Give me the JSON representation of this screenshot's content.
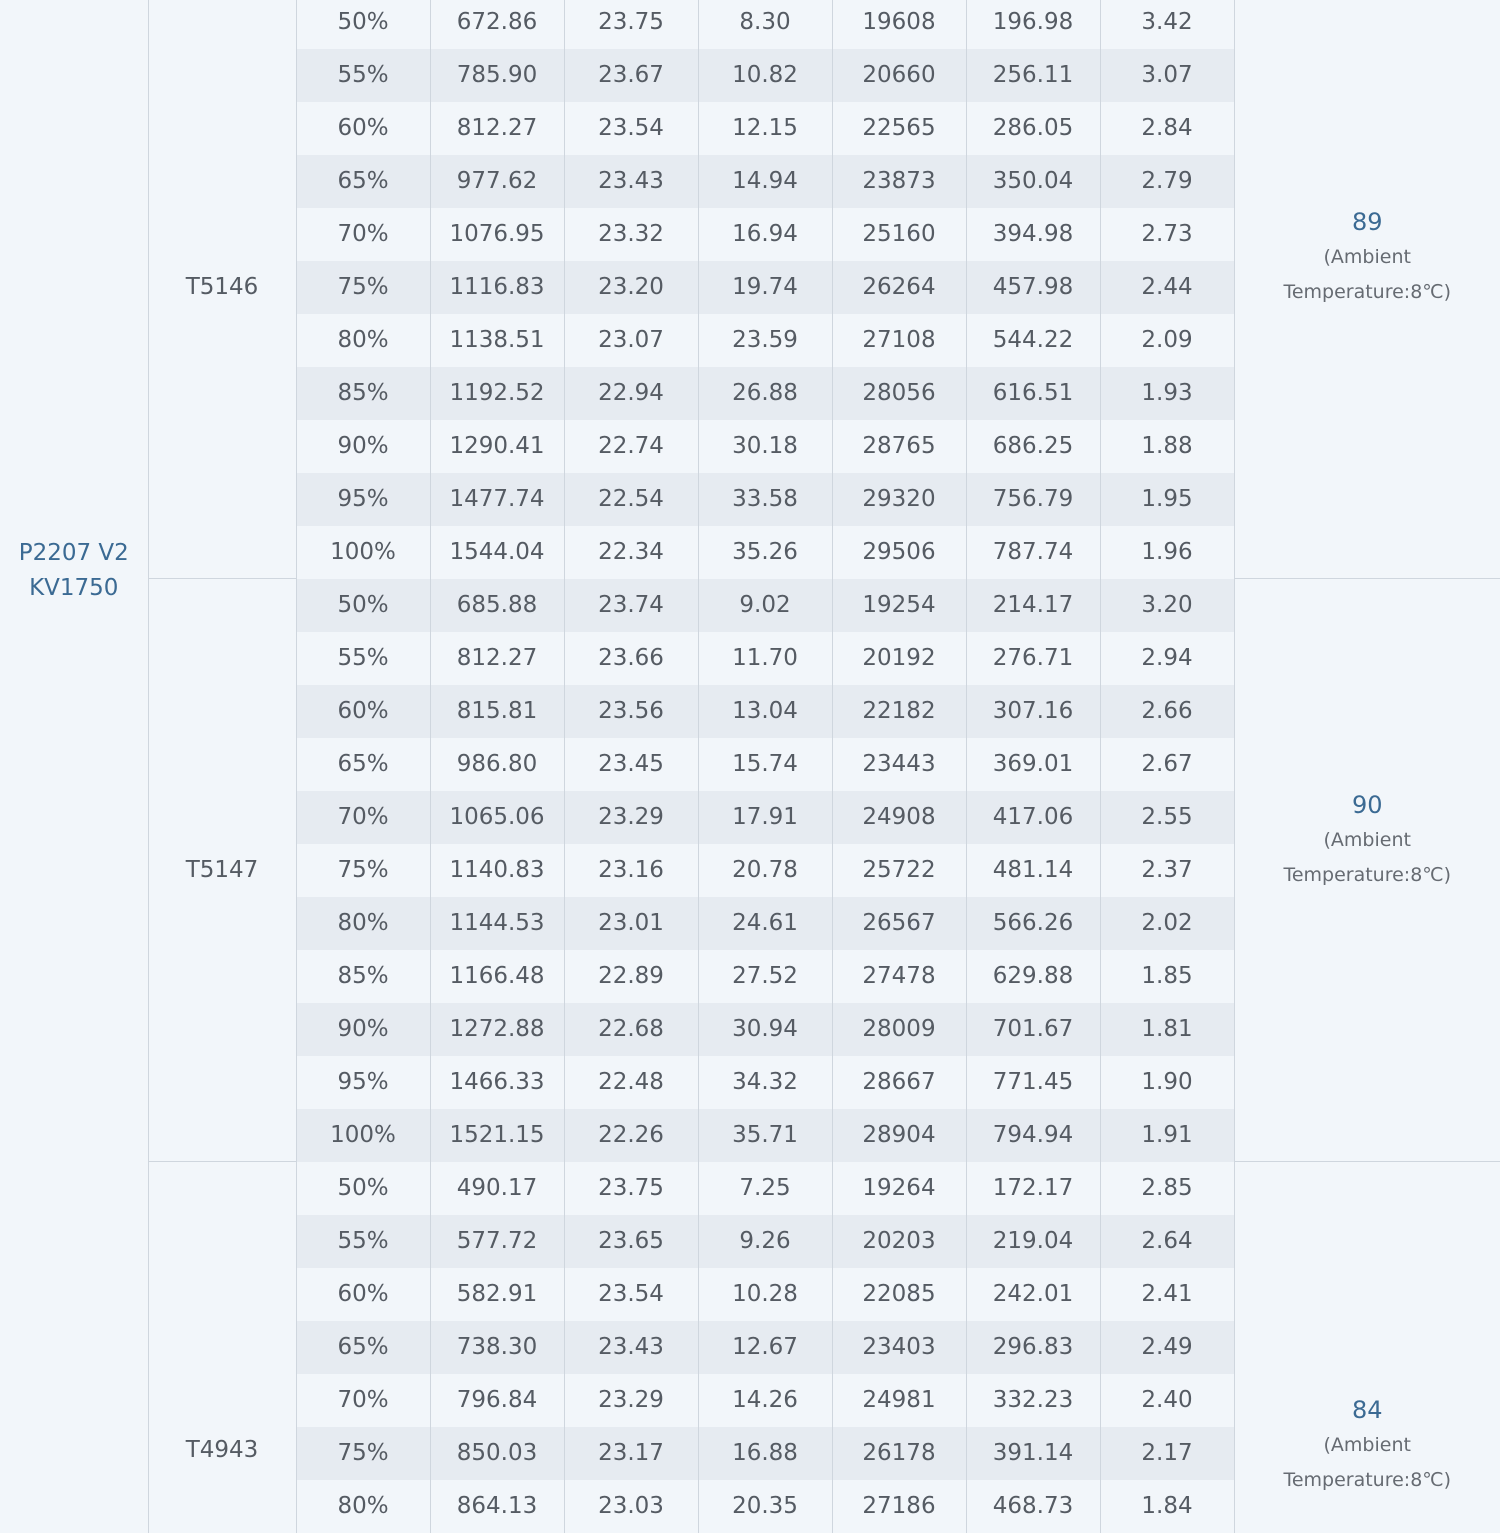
{
  "motor": {
    "line1": "P2207 V2",
    "line2": "KV1750"
  },
  "groups": [
    {
      "propeller": "T5146",
      "temp_value": "89",
      "temp_note_1": "(Ambient",
      "temp_note_2": "Temperature:8℃)",
      "rows": [
        [
          "50%",
          "672.86",
          "23.75",
          "8.30",
          "19608",
          "196.98",
          "3.42"
        ],
        [
          "55%",
          "785.90",
          "23.67",
          "10.82",
          "20660",
          "256.11",
          "3.07"
        ],
        [
          "60%",
          "812.27",
          "23.54",
          "12.15",
          "22565",
          "286.05",
          "2.84"
        ],
        [
          "65%",
          "977.62",
          "23.43",
          "14.94",
          "23873",
          "350.04",
          "2.79"
        ],
        [
          "70%",
          "1076.95",
          "23.32",
          "16.94",
          "25160",
          "394.98",
          "2.73"
        ],
        [
          "75%",
          "1116.83",
          "23.20",
          "19.74",
          "26264",
          "457.98",
          "2.44"
        ],
        [
          "80%",
          "1138.51",
          "23.07",
          "23.59",
          "27108",
          "544.22",
          "2.09"
        ],
        [
          "85%",
          "1192.52",
          "22.94",
          "26.88",
          "28056",
          "616.51",
          "1.93"
        ],
        [
          "90%",
          "1290.41",
          "22.74",
          "30.18",
          "28765",
          "686.25",
          "1.88"
        ],
        [
          "95%",
          "1477.74",
          "22.54",
          "33.58",
          "29320",
          "756.79",
          "1.95"
        ],
        [
          "100%",
          "1544.04",
          "22.34",
          "35.26",
          "29506",
          "787.74",
          "1.96"
        ]
      ]
    },
    {
      "propeller": "T5147",
      "temp_value": "90",
      "temp_note_1": "(Ambient",
      "temp_note_2": "Temperature:8℃)",
      "rows": [
        [
          "50%",
          "685.88",
          "23.74",
          "9.02",
          "19254",
          "214.17",
          "3.20"
        ],
        [
          "55%",
          "812.27",
          "23.66",
          "11.70",
          "20192",
          "276.71",
          "2.94"
        ],
        [
          "60%",
          "815.81",
          "23.56",
          "13.04",
          "22182",
          "307.16",
          "2.66"
        ],
        [
          "65%",
          "986.80",
          "23.45",
          "15.74",
          "23443",
          "369.01",
          "2.67"
        ],
        [
          "70%",
          "1065.06",
          "23.29",
          "17.91",
          "24908",
          "417.06",
          "2.55"
        ],
        [
          "75%",
          "1140.83",
          "23.16",
          "20.78",
          "25722",
          "481.14",
          "2.37"
        ],
        [
          "80%",
          "1144.53",
          "23.01",
          "24.61",
          "26567",
          "566.26",
          "2.02"
        ],
        [
          "85%",
          "1166.48",
          "22.89",
          "27.52",
          "27478",
          "629.88",
          "1.85"
        ],
        [
          "90%",
          "1272.88",
          "22.68",
          "30.94",
          "28009",
          "701.67",
          "1.81"
        ],
        [
          "95%",
          "1466.33",
          "22.48",
          "34.32",
          "28667",
          "771.45",
          "1.90"
        ],
        [
          "100%",
          "1521.15",
          "22.26",
          "35.71",
          "28904",
          "794.94",
          "1.91"
        ]
      ]
    },
    {
      "propeller": "T4943",
      "temp_value": "84",
      "temp_note_1": "(Ambient",
      "temp_note_2": "Temperature:8℃)",
      "rows": [
        [
          "50%",
          "490.17",
          "23.75",
          "7.25",
          "19264",
          "172.17",
          "2.85"
        ],
        [
          "55%",
          "577.72",
          "23.65",
          "9.26",
          "20203",
          "219.04",
          "2.64"
        ],
        [
          "60%",
          "582.91",
          "23.54",
          "10.28",
          "22085",
          "242.01",
          "2.41"
        ],
        [
          "65%",
          "738.30",
          "23.43",
          "12.67",
          "23403",
          "296.83",
          "2.49"
        ],
        [
          "70%",
          "796.84",
          "23.29",
          "14.26",
          "24981",
          "332.23",
          "2.40"
        ],
        [
          "75%",
          "850.03",
          "23.17",
          "16.88",
          "26178",
          "391.14",
          "2.17"
        ],
        [
          "80%",
          "864.13",
          "23.03",
          "20.35",
          "27186",
          "468.73",
          "1.84"
        ]
      ]
    }
  ]
}
